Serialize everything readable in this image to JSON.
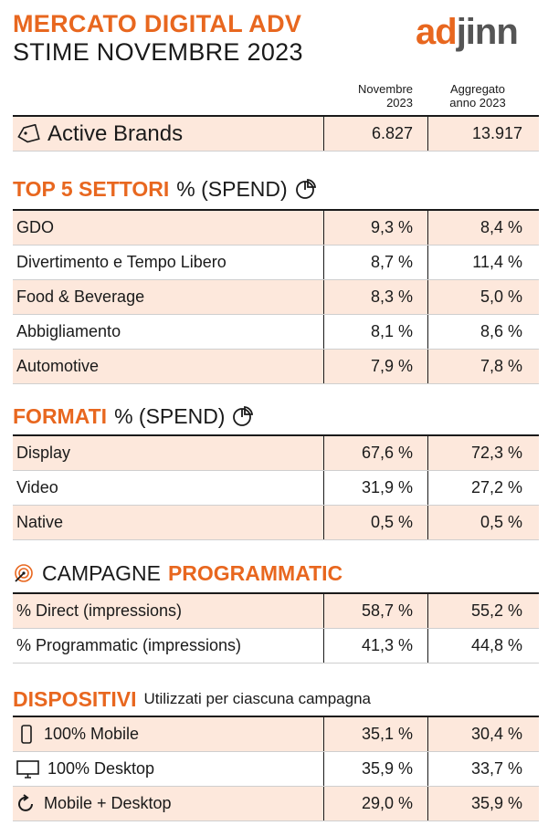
{
  "header": {
    "title_line1": "MERCATO DIGITAL ADV",
    "title_line2": "STIME NOVEMBRE 2023",
    "logo_part1": "ad",
    "logo_part2": "jinn"
  },
  "columns": {
    "col1": "Novembre 2023",
    "col2": "Aggregato anno 2023"
  },
  "active_brands": {
    "label": "Active Brands",
    "v1": "6.827",
    "v2": "13.917"
  },
  "settori": {
    "title_bold": "TOP 5 SETTORI",
    "title_rest": "% (SPEND)",
    "rows": [
      {
        "label": "GDO",
        "v1": "9,3 %",
        "v2": "8,4 %"
      },
      {
        "label": "Divertimento e Tempo Libero",
        "v1": "8,7 %",
        "v2": "11,4 %"
      },
      {
        "label": "Food & Beverage",
        "v1": "8,3 %",
        "v2": "5,0 %"
      },
      {
        "label": "Abbigliamento",
        "v1": "8,1 %",
        "v2": "8,6 %"
      },
      {
        "label": "Automotive",
        "v1": "7,9 %",
        "v2": "7,8 %"
      }
    ]
  },
  "formati": {
    "title_bold": "FORMATI",
    "title_rest": "% (SPEND)",
    "rows": [
      {
        "label": "Display",
        "v1": "67,6 %",
        "v2": "72,3 %"
      },
      {
        "label": "Video",
        "v1": "31,9 %",
        "v2": "27,2 %"
      },
      {
        "label": "Native",
        "v1": "0,5 %",
        "v2": "0,5 %"
      }
    ]
  },
  "programmatic": {
    "title_rest": "CAMPAGNE",
    "title_bold": "PROGRAMMATIC",
    "rows": [
      {
        "label": "% Direct (impressions)",
        "v1": "58,7 %",
        "v2": "55,2 %"
      },
      {
        "label": "% Programmatic (impressions)",
        "v1": "41,3 %",
        "v2": "44,8 %"
      }
    ]
  },
  "dispositivi": {
    "title_bold": "DISPOSITIVI",
    "title_sub": "Utilizzati per ciascuna campagna",
    "rows": [
      {
        "icon": "mobile-icon",
        "label": "100% Mobile",
        "v1": "35,1 %",
        "v2": "30,4 %"
      },
      {
        "icon": "desktop-icon",
        "label": "100% Desktop",
        "v1": "35,9 %",
        "v2": "33,7 %"
      },
      {
        "icon": "refresh-icon",
        "label": "Mobile + Desktop",
        "v1": "29,0 %",
        "v2": "35,9 %"
      }
    ]
  },
  "colors": {
    "accent": "#e8671f",
    "row_shade": "#fde8dc",
    "logo_grey": "#555555"
  }
}
